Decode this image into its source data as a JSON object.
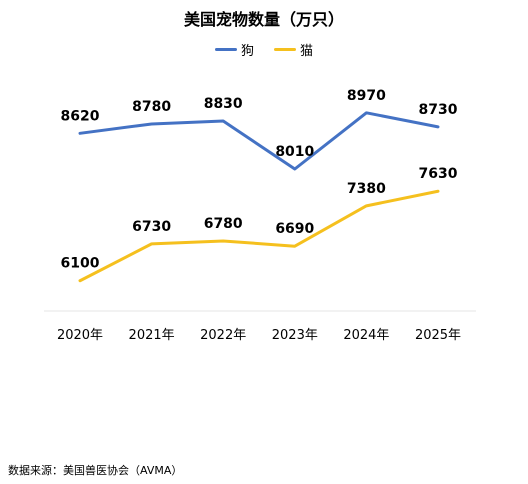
{
  "chart_data": {
    "type": "line",
    "title": "美国宠物数量（万只）",
    "categories": [
      "2020年",
      "2021年",
      "2022年",
      "2023年",
      "2024年",
      "2025年"
    ],
    "series": [
      {
        "name": "狗",
        "color": "#4472C4",
        "values": [
          8620,
          8780,
          8830,
          8010,
          8970,
          8730
        ]
      },
      {
        "name": "猫",
        "color": "#F5C01E",
        "values": [
          6100,
          6730,
          6780,
          6690,
          7380,
          7630
        ]
      }
    ],
    "legend_position": "top",
    "grid": false,
    "data_labels": true,
    "xlabel": "",
    "ylabel": ""
  },
  "source_note": "数据来源：美国兽医协会（AVMA）"
}
